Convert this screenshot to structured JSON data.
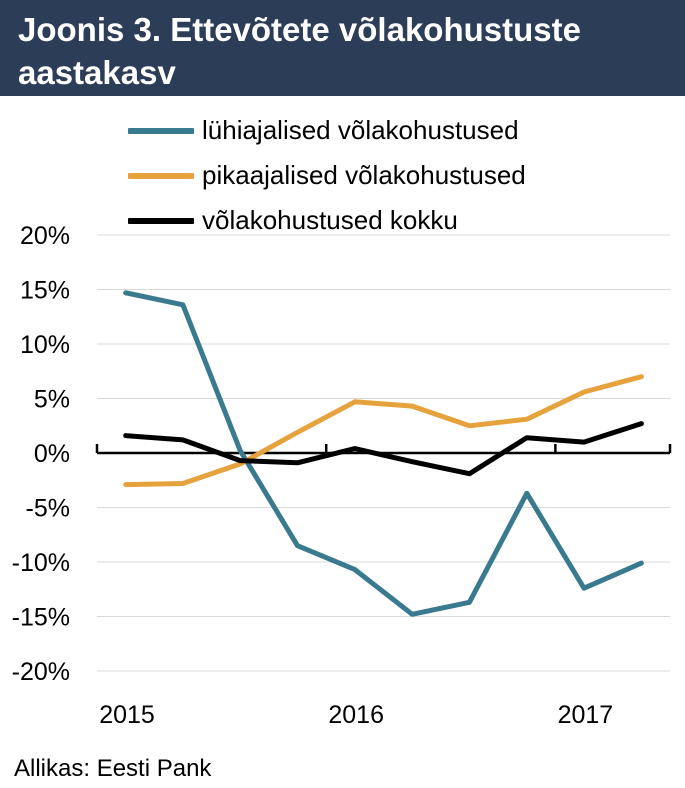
{
  "header": {
    "title": "Joonis 3. Ettevõtete võlakohustuste aastakasv"
  },
  "source": "Allikas: Eesti Pank",
  "colors": {
    "header_bg": "#2c3e57",
    "short_term": "#3a7a8e",
    "long_term": "#e6a23c",
    "total": "#000000",
    "grid": "#d9d9d9"
  },
  "chart_data": {
    "type": "line",
    "ylim": [
      -0.2,
      0.2
    ],
    "yticks": [
      0.2,
      0.15,
      0.1,
      0.05,
      0,
      -0.05,
      -0.1,
      -0.15,
      -0.2
    ],
    "ytick_labels": [
      "20%",
      "15%",
      "10%",
      "5%",
      "0%",
      "-5%",
      "-10%",
      "-15%",
      "-20%"
    ],
    "xlim": [
      2015.0,
      2017.5
    ],
    "xtick_labels": [
      {
        "label": "2015",
        "x": 2015.0
      },
      {
        "label": "2016",
        "x": 2016.0
      },
      {
        "label": "2017",
        "x": 2017.0
      }
    ],
    "x": [
      2015.125,
      2015.375,
      2015.625,
      2015.875,
      2016.125,
      2016.375,
      2016.625,
      2016.875,
      2017.125,
      2017.375
    ],
    "grid": true,
    "legend_position": "top",
    "series": [
      {
        "name": "lühiajalised võlakohustused",
        "color": "#3a7a8e",
        "values": [
          0.147,
          0.136,
          0.002,
          -0.085,
          -0.107,
          -0.148,
          -0.137,
          -0.037,
          -0.124,
          -0.101
        ]
      },
      {
        "name": "pikaajalised võlakohustused",
        "color": "#e6a23c",
        "values": [
          -0.029,
          -0.028,
          -0.01,
          0.019,
          0.047,
          0.043,
          0.025,
          0.031,
          0.056,
          0.07
        ]
      },
      {
        "name": "võlakohustused kokku",
        "color": "#000000",
        "values": [
          0.016,
          0.012,
          -0.007,
          -0.009,
          0.004,
          -0.008,
          -0.019,
          0.014,
          0.01,
          0.027
        ]
      }
    ]
  }
}
